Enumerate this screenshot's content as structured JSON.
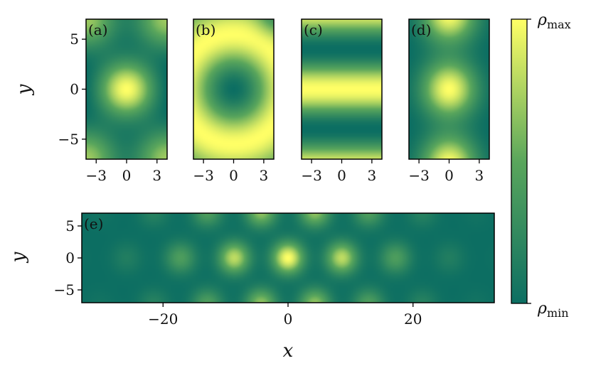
{
  "colors": {
    "low": "#0c6e62",
    "mid": "#5aa65c",
    "high": "#ffff66",
    "axis": "#000000"
  },
  "chart_data": [
    {
      "type": "heatmap",
      "panel": "(a)",
      "pattern": "central blob with four corner lobes",
      "xlim": [
        -4,
        4
      ],
      "ylim": [
        -7,
        7
      ],
      "xticks": [
        "−3",
        "0",
        "3"
      ],
      "xtick_values": [
        -3,
        0,
        3
      ],
      "yticks": [
        "5",
        "0",
        "−5"
      ],
      "ytick_values": [
        5,
        0,
        -5
      ],
      "ylabel": "y"
    },
    {
      "type": "heatmap",
      "panel": "(b)",
      "pattern": "ring with dark center",
      "xlim": [
        -4,
        4
      ],
      "ylim": [
        -7,
        7
      ],
      "xticks": [
        "−3",
        "0",
        "3"
      ],
      "xtick_values": [
        -3,
        0,
        3
      ]
    },
    {
      "type": "heatmap",
      "panel": "(c)",
      "pattern": "horizontal stripes",
      "xlim": [
        -4,
        4
      ],
      "ylim": [
        -7,
        7
      ],
      "xticks": [
        "−3",
        "0",
        "3"
      ],
      "xtick_values": [
        -3,
        0,
        3
      ]
    },
    {
      "type": "heatmap",
      "panel": "(d)",
      "pattern": "three vertically stacked blobs",
      "xlim": [
        -4,
        4
      ],
      "ylim": [
        -7,
        7
      ],
      "xticks": [
        "−3",
        "0",
        "3"
      ],
      "xtick_values": [
        -3,
        0,
        3
      ]
    },
    {
      "type": "heatmap",
      "panel": "(e)",
      "pattern": "triangular lattice of blobs under a gaussian envelope",
      "xlim": [
        -33,
        33
      ],
      "ylim": [
        -7,
        7
      ],
      "xticks": [
        "−20",
        "0",
        "20"
      ],
      "xtick_values": [
        -20,
        0,
        20
      ],
      "yticks": [
        "5",
        "0",
        "−5"
      ],
      "ytick_values": [
        5,
        0,
        -5
      ],
      "xlabel": "x",
      "ylabel": "y"
    }
  ],
  "colorbar": {
    "max_label": "ρ",
    "max_sub": "max",
    "min_label": "ρ",
    "min_sub": "min"
  }
}
